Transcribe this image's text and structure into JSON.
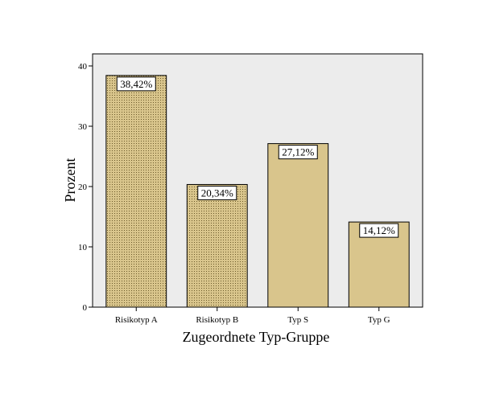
{
  "chart_data": {
    "type": "bar",
    "categories": [
      "Risikotyp A",
      "Risikotyp B",
      "Typ S",
      "Typ G"
    ],
    "values": [
      38.42,
      20.34,
      27.12,
      14.12
    ],
    "data_labels": [
      "38,42%",
      "20,34%",
      "27,12%",
      "14,12%"
    ],
    "patterned": [
      true,
      true,
      false,
      false
    ],
    "title": "",
    "xlabel": "Zugeordnete Typ-Gruppe",
    "ylabel": "Prozent",
    "ylim": [
      0,
      40
    ],
    "yticks": [
      0,
      10,
      20,
      30,
      40
    ],
    "ytick_labels": [
      "0",
      "10",
      "20",
      "30",
      "40"
    ],
    "grid": false,
    "legend": "none",
    "colors": {
      "bar_fill": "#d9c58c",
      "bar_stroke": "#000000",
      "plot_background": "#ececec",
      "dot_pattern": "#6b5a2a"
    }
  }
}
